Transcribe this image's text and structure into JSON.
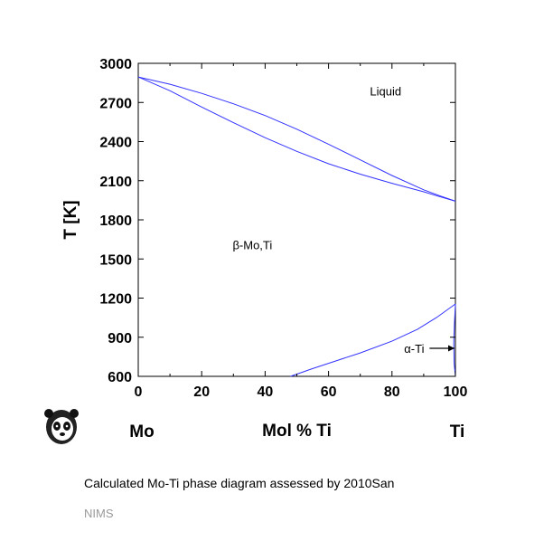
{
  "chart_data": {
    "type": "line",
    "xlabel": "Mol % Ti",
    "ylabel": "T [K]",
    "xlim": [
      0,
      100
    ],
    "ylim": [
      600,
      3000
    ],
    "xticks": [
      0,
      20,
      40,
      60,
      80,
      100
    ],
    "yticks": [
      600,
      900,
      1200,
      1500,
      1800,
      2100,
      2400,
      2700,
      3000
    ],
    "x_end_labels": {
      "left": "Mo",
      "right": "Ti"
    },
    "line_color": "#3333ff",
    "grid": false,
    "series": [
      {
        "x": [
          0,
          10,
          20,
          30,
          40,
          50,
          60,
          70,
          80,
          90,
          95,
          100
        ],
        "y": [
          2895,
          2840,
          2770,
          2690,
          2600,
          2495,
          2380,
          2260,
          2140,
          2030,
          1985,
          1943
        ]
      },
      {
        "x": [
          0,
          10,
          20,
          30,
          40,
          50,
          60,
          70,
          80,
          90,
          95,
          100
        ],
        "y": [
          2895,
          2790,
          2665,
          2545,
          2430,
          2325,
          2230,
          2150,
          2080,
          2015,
          1978,
          1943
        ]
      },
      {
        "x": [
          48,
          55,
          60,
          70,
          80,
          88,
          94,
          100
        ],
        "y": [
          600,
          660,
          700,
          780,
          870,
          960,
          1050,
          1155
        ]
      },
      {
        "x": [
          100,
          99.7,
          99.5,
          99.6,
          100
        ],
        "y": [
          1155,
          1000,
          860,
          700,
          600
        ]
      }
    ],
    "annotations": [
      {
        "text": "Liquid",
        "x": 78,
        "y": 2790
      },
      {
        "text": "β-Mo,Ti",
        "x": 36,
        "y": 1610
      },
      {
        "text": "α-Ti",
        "x": 87,
        "y": 815,
        "arrow_to": [
          100,
          815
        ]
      }
    ]
  },
  "caption": "Calculated Mo-Ti phase diagram assessed by 2010San",
  "credit": "NIMS"
}
